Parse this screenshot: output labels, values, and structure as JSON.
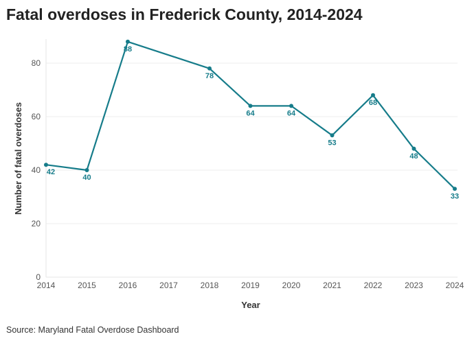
{
  "chart_data": {
    "type": "line",
    "title": "Fatal overdoses in Frederick County, 2014-2024",
    "xlabel": "Year",
    "ylabel": "Number of fatal overdoses",
    "x_ticks": [
      "2014",
      "2015",
      "2016",
      "2017",
      "2018",
      "2019",
      "2020",
      "2021",
      "2022",
      "2023",
      "2024"
    ],
    "y_ticks": [
      0,
      20,
      40,
      60,
      80
    ],
    "ylim": [
      0,
      90
    ],
    "xlim": [
      2014,
      2024
    ],
    "grid": "horizontal",
    "color": "#167c8a",
    "series": [
      {
        "x": [
          2014,
          2015,
          2016,
          2018,
          2019,
          2020,
          2021,
          2022,
          2023,
          2024
        ],
        "values": [
          42,
          40,
          88,
          78,
          64,
          64,
          53,
          68,
          48,
          33
        ]
      }
    ],
    "source": "Source: Maryland Fatal Overdose Dashboard"
  }
}
